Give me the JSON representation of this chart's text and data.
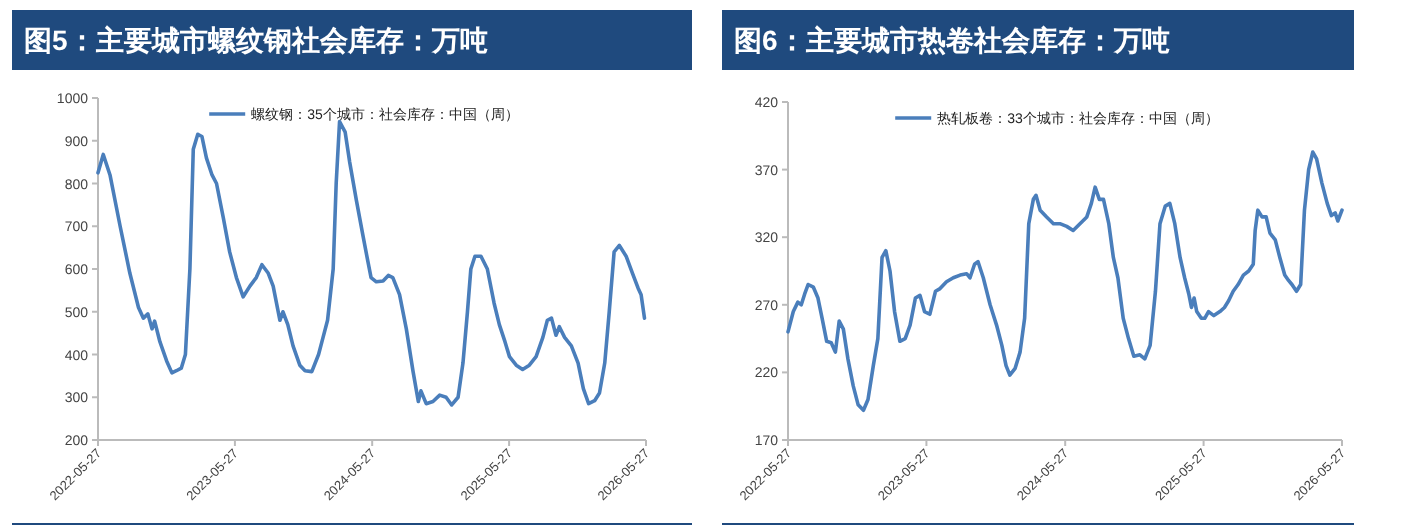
{
  "chart_data": [
    {
      "type": "line",
      "title": "图5：主要城市螺纹钢社会库存：万吨",
      "legend": "top",
      "grid": false,
      "xlim": [
        "2022-05-27",
        "2026-05-27"
      ],
      "xticks": [
        "2022-05-27",
        "2023-05-27",
        "2024-05-27",
        "2025-05-27",
        "2026-05-27"
      ],
      "ylim": [
        200,
        1000
      ],
      "yticks": [
        200,
        300,
        400,
        500,
        600,
        700,
        800,
        900,
        1000
      ],
      "x": [
        "2022-05-27",
        "2022-06-10",
        "2022-06-28",
        "2022-07-25",
        "2022-08-20",
        "2022-09-12",
        "2022-09-25",
        "2022-10-07",
        "2022-10-18",
        "2022-10-25",
        "2022-11-08",
        "2022-11-26",
        "2022-12-10",
        "2022-12-22",
        "2023-01-04",
        "2023-01-15",
        "2023-01-27",
        "2023-02-05",
        "2023-02-17",
        "2023-02-28",
        "2023-03-12",
        "2023-03-27",
        "2023-04-08",
        "2023-04-26",
        "2023-05-13",
        "2023-05-31",
        "2023-06-18",
        "2023-07-06",
        "2023-07-23",
        "2023-08-07",
        "2023-08-24",
        "2023-09-06",
        "2023-09-24",
        "2023-10-02",
        "2023-10-15",
        "2023-10-29",
        "2023-11-16",
        "2023-11-30",
        "2023-12-18",
        "2024-01-05",
        "2024-01-17",
        "2024-01-29",
        "2024-02-13",
        "2024-02-21",
        "2024-03-01",
        "2024-03-16",
        "2024-03-28",
        "2024-04-15",
        "2024-05-02",
        "2024-05-15",
        "2024-05-24",
        "2024-06-07",
        "2024-06-25",
        "2024-07-09",
        "2024-07-21",
        "2024-08-08",
        "2024-08-26",
        "2024-09-13",
        "2024-09-27",
        "2024-10-04",
        "2024-10-18",
        "2024-11-05",
        "2024-11-23",
        "2024-12-10",
        "2024-12-25",
        "2025-01-11",
        "2025-01-24",
        "2025-02-05",
        "2025-02-14",
        "2025-02-25",
        "2025-03-13",
        "2025-03-30",
        "2025-04-17",
        "2025-05-01",
        "2025-05-16",
        "2025-05-28",
        "2025-06-15",
        "2025-07-02",
        "2025-07-20",
        "2025-08-07",
        "2025-08-25",
        "2025-09-06",
        "2025-09-17",
        "2025-09-29",
        "2025-10-08",
        "2025-10-22",
        "2025-11-09",
        "2025-11-27",
        "2025-12-11",
        "2025-12-25",
        "2026-01-10",
        "2026-01-23",
        "2026-02-06",
        "2026-02-18",
        "2026-03-03",
        "2026-03-17",
        "2026-04-04",
        "2026-04-21",
        "2026-05-06",
        "2026-05-14",
        "2026-05-23"
      ],
      "series": [
        {
          "name": "螺纹钢：35个城市：社会库存：中国（周）",
          "color": "#4a7ebb",
          "values": [
            825,
            868,
            820,
            700,
            590,
            510,
            485,
            495,
            460,
            478,
            430,
            385,
            357,
            362,
            368,
            400,
            600,
            880,
            915,
            910,
            860,
            820,
            800,
            720,
            640,
            580,
            535,
            560,
            580,
            610,
            590,
            560,
            480,
            500,
            470,
            420,
            375,
            362,
            360,
            400,
            440,
            480,
            600,
            800,
            945,
            920,
            850,
            760,
            680,
            620,
            580,
            570,
            572,
            585,
            580,
            540,
            460,
            360,
            290,
            315,
            285,
            290,
            305,
            300,
            282,
            300,
            380,
            500,
            600,
            630,
            630,
            600,
            520,
            470,
            430,
            395,
            375,
            365,
            375,
            395,
            440,
            480,
            485,
            445,
            465,
            440,
            420,
            380,
            320,
            285,
            292,
            310,
            380,
            500,
            640,
            655,
            630,
            590,
            555,
            540,
            485
          ]
        }
      ]
    },
    {
      "type": "line",
      "title": "图6：主要城市热卷社会库存：万吨",
      "legend": "top",
      "grid": false,
      "xlim": [
        "2022-05-27",
        "2026-05-27"
      ],
      "xticks": [
        "2022-05-27",
        "2023-05-27",
        "2024-05-27",
        "2025-05-27",
        "2026-05-27"
      ],
      "ylim": [
        170,
        420
      ],
      "yticks": [
        170,
        220,
        270,
        320,
        370,
        420
      ],
      "x": [
        "2022-05-27",
        "2022-06-10",
        "2022-06-22",
        "2022-07-01",
        "2022-07-10",
        "2022-07-19",
        "2022-08-02",
        "2022-08-14",
        "2022-08-25",
        "2022-09-06",
        "2022-09-18",
        "2022-09-29",
        "2022-10-09",
        "2022-10-20",
        "2022-11-01",
        "2022-11-15",
        "2022-11-28",
        "2022-12-12",
        "2022-12-24",
        "2023-01-07",
        "2023-01-19",
        "2023-01-30",
        "2023-02-09",
        "2023-02-20",
        "2023-03-04",
        "2023-03-18",
        "2023-04-01",
        "2023-04-14",
        "2023-04-28",
        "2023-05-10",
        "2023-05-22",
        "2023-06-05",
        "2023-06-20",
        "2023-07-02",
        "2023-07-19",
        "2023-08-06",
        "2023-08-24",
        "2023-09-10",
        "2023-09-19",
        "2023-10-01",
        "2023-10-10",
        "2023-10-24",
        "2023-11-11",
        "2023-11-28",
        "2023-12-12",
        "2023-12-23",
        "2024-01-02",
        "2024-01-16",
        "2024-01-29",
        "2024-02-10",
        "2024-02-21",
        "2024-03-04",
        "2024-03-11",
        "2024-03-22",
        "2024-04-08",
        "2024-04-26",
        "2024-05-13",
        "2024-05-31",
        "2024-06-17",
        "2024-07-05",
        "2024-07-23",
        "2024-08-04",
        "2024-08-14",
        "2024-08-25",
        "2024-09-05",
        "2024-09-19",
        "2024-10-01",
        "2024-10-13",
        "2024-10-27",
        "2024-11-10",
        "2024-11-24",
        "2024-12-10",
        "2024-12-23",
        "2025-01-06",
        "2025-01-20",
        "2025-02-01",
        "2025-02-15",
        "2025-02-27",
        "2025-03-12",
        "2025-03-26",
        "2025-04-07",
        "2025-04-18",
        "2025-04-25",
        "2025-05-02",
        "2025-05-09",
        "2025-05-21",
        "2025-05-30",
        "2025-06-09",
        "2025-06-23",
        "2025-07-09",
        "2025-07-21",
        "2025-08-01",
        "2025-08-13",
        "2025-08-26",
        "2025-09-09",
        "2025-09-23",
        "2025-10-05",
        "2025-10-10",
        "2025-10-17",
        "2025-10-28",
        "2025-11-08",
        "2025-11-18",
        "2025-12-02",
        "2025-12-14",
        "2025-12-27",
        "2026-01-06",
        "2026-01-15",
        "2026-01-27",
        "2026-02-07",
        "2026-02-17",
        "2026-02-28",
        "2026-03-11",
        "2026-03-21",
        "2026-04-04",
        "2026-04-18",
        "2026-04-29",
        "2026-05-09",
        "2026-05-16",
        "2026-05-27"
      ],
      "series": [
        {
          "name": "热轧板卷：33个城市：社会库存：中国（周）",
          "color": "#4a7ebb",
          "values": [
            250,
            265,
            272,
            270,
            278,
            285,
            283,
            275,
            260,
            243,
            242,
            235,
            258,
            252,
            230,
            210,
            196,
            192,
            200,
            225,
            245,
            305,
            310,
            295,
            265,
            243,
            245,
            255,
            275,
            277,
            265,
            263,
            280,
            282,
            287,
            290,
            292,
            293,
            290,
            300,
            302,
            290,
            270,
            255,
            240,
            225,
            218,
            223,
            235,
            260,
            330,
            348,
            351,
            340,
            335,
            330,
            330,
            328,
            325,
            330,
            335,
            345,
            357,
            348,
            348,
            330,
            305,
            290,
            260,
            245,
            232,
            233,
            230,
            240,
            280,
            330,
            343,
            345,
            330,
            305,
            290,
            278,
            268,
            275,
            265,
            260,
            260,
            265,
            262,
            265,
            268,
            273,
            280,
            285,
            292,
            295,
            300,
            325,
            340,
            335,
            335,
            323,
            318,
            305,
            292,
            288,
            285,
            280,
            285,
            340,
            370,
            383,
            378,
            360,
            345,
            336,
            338,
            332,
            340
          ]
        }
      ]
    }
  ]
}
